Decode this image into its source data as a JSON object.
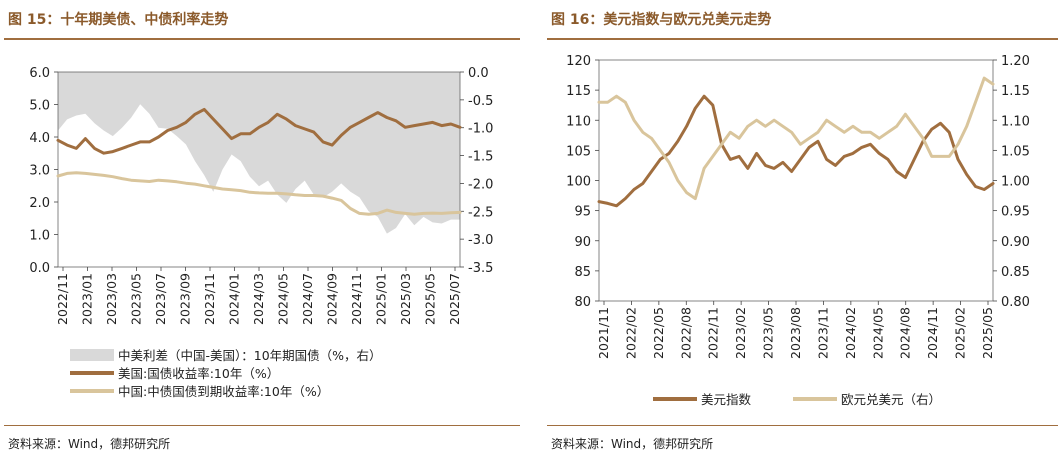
{
  "left": {
    "title": "图 15：十年期美债、中债利率走势",
    "source": "资料来源：Wind，德邦研究所",
    "chart_data": {
      "type": "line",
      "left_axis": {
        "min": 0.0,
        "max": 6.0,
        "ticks": [
          "6.0",
          "5.0",
          "4.0",
          "3.0",
          "2.0",
          "1.0",
          "0.0"
        ]
      },
      "right_axis": {
        "min": -3.5,
        "max": 0.0,
        "ticks": [
          "0.0",
          "-0.5",
          "-1.0",
          "-1.5",
          "-2.0",
          "-2.5",
          "-3.0",
          "-3.5"
        ]
      },
      "x_ticks": [
        "2022/11",
        "2023/01",
        "2023/03",
        "2023/05",
        "2023/07",
        "2023/09",
        "2023/11",
        "2024/01",
        "2024/03",
        "2024/05",
        "2024/07",
        "2024/09",
        "2024/11",
        "2025/01",
        "2025/03",
        "2025/05",
        "2025/07"
      ],
      "series": [
        {
          "name": "中美利差（中国-美国）：10年期国债（%，右）",
          "type": "area",
          "axis": "right",
          "color": "#d9d9d9",
          "values": [
            -1.05,
            -0.85,
            -0.78,
            -0.75,
            -0.92,
            -1.05,
            -1.15,
            -1.0,
            -0.82,
            -0.58,
            -0.75,
            -1.0,
            -1.02,
            -1.15,
            -1.3,
            -1.6,
            -1.85,
            -2.15,
            -1.75,
            -1.48,
            -1.6,
            -1.88,
            -2.05,
            -1.95,
            -2.2,
            -2.35,
            -2.1,
            -1.95,
            -2.2,
            -2.25,
            -2.15,
            -2.0,
            -2.15,
            -2.25,
            -2.5,
            -2.6,
            -2.9,
            -2.8,
            -2.55,
            -2.75,
            -2.6,
            -2.7,
            -2.72,
            -2.65,
            -2.65
          ]
        },
        {
          "name": "美国:国债收益率:10年（%）",
          "type": "line",
          "axis": "left",
          "color": "#a06e3f",
          "values": [
            3.9,
            3.75,
            3.65,
            3.95,
            3.65,
            3.5,
            3.55,
            3.65,
            3.75,
            3.85,
            3.85,
            4.0,
            4.2,
            4.3,
            4.45,
            4.7,
            4.85,
            4.55,
            4.25,
            3.95,
            4.1,
            4.1,
            4.3,
            4.45,
            4.7,
            4.55,
            4.35,
            4.25,
            4.15,
            3.85,
            3.75,
            4.05,
            4.3,
            4.45,
            4.6,
            4.75,
            4.6,
            4.5,
            4.3,
            4.35,
            4.4,
            4.45,
            4.35,
            4.4,
            4.3
          ]
        },
        {
          "name": "中国:中债国债到期收益率:10年（%）",
          "type": "line",
          "axis": "left",
          "color": "#d9c59c",
          "values": [
            2.8,
            2.88,
            2.9,
            2.88,
            2.85,
            2.82,
            2.78,
            2.72,
            2.67,
            2.65,
            2.63,
            2.67,
            2.65,
            2.62,
            2.58,
            2.55,
            2.5,
            2.45,
            2.4,
            2.38,
            2.35,
            2.3,
            2.28,
            2.27,
            2.27,
            2.25,
            2.22,
            2.2,
            2.2,
            2.18,
            2.12,
            2.05,
            1.8,
            1.65,
            1.62,
            1.65,
            1.75,
            1.68,
            1.65,
            1.62,
            1.65,
            1.66,
            1.65,
            1.67,
            1.68
          ]
        }
      ]
    }
  },
  "right": {
    "title": "图 16：美元指数与欧元兑美元走势",
    "source": "资料来源：Wind，德邦研究所",
    "chart_data": {
      "type": "line",
      "left_axis": {
        "min": 80,
        "max": 120,
        "ticks": [
          "120",
          "115",
          "110",
          "105",
          "100",
          "95",
          "90",
          "85",
          "80"
        ]
      },
      "right_axis": {
        "min": 0.8,
        "max": 1.2,
        "ticks": [
          "1.20",
          "1.15",
          "1.10",
          "1.05",
          "1.00",
          "0.95",
          "0.90",
          "0.85",
          "0.80"
        ]
      },
      "x_ticks": [
        "2021/11",
        "2022/02",
        "2022/05",
        "2022/08",
        "2022/11",
        "2023/02",
        "2023/05",
        "2023/08",
        "2023/11",
        "2024/02",
        "2024/05",
        "2024/08",
        "2024/11",
        "2025/02",
        "2025/05"
      ],
      "series": [
        {
          "name": "美元指数",
          "type": "line",
          "axis": "left",
          "color": "#a06e3f",
          "values": [
            96.5,
            96.2,
            95.8,
            97.0,
            98.5,
            99.5,
            101.5,
            103.5,
            104.5,
            106.5,
            109.0,
            112.0,
            114.0,
            112.5,
            106.0,
            103.5,
            104.0,
            102.0,
            104.5,
            102.5,
            102.0,
            103.0,
            101.5,
            103.5,
            105.5,
            106.5,
            103.5,
            102.5,
            104.0,
            104.5,
            105.5,
            106.0,
            104.5,
            103.5,
            101.5,
            100.5,
            103.5,
            106.5,
            108.5,
            109.5,
            108.0,
            103.5,
            101.0,
            99.0,
            98.5,
            99.5
          ]
        },
        {
          "name": "欧元兑美元（右）",
          "type": "line",
          "axis": "right",
          "color": "#d9c59c",
          "values": [
            1.13,
            1.13,
            1.14,
            1.13,
            1.1,
            1.08,
            1.07,
            1.05,
            1.03,
            1.0,
            0.98,
            0.97,
            1.02,
            1.04,
            1.06,
            1.08,
            1.07,
            1.09,
            1.1,
            1.09,
            1.1,
            1.09,
            1.08,
            1.06,
            1.07,
            1.08,
            1.1,
            1.09,
            1.08,
            1.09,
            1.08,
            1.08,
            1.07,
            1.08,
            1.09,
            1.11,
            1.09,
            1.07,
            1.04,
            1.04,
            1.04,
            1.06,
            1.09,
            1.13,
            1.17,
            1.16
          ]
        }
      ]
    }
  }
}
